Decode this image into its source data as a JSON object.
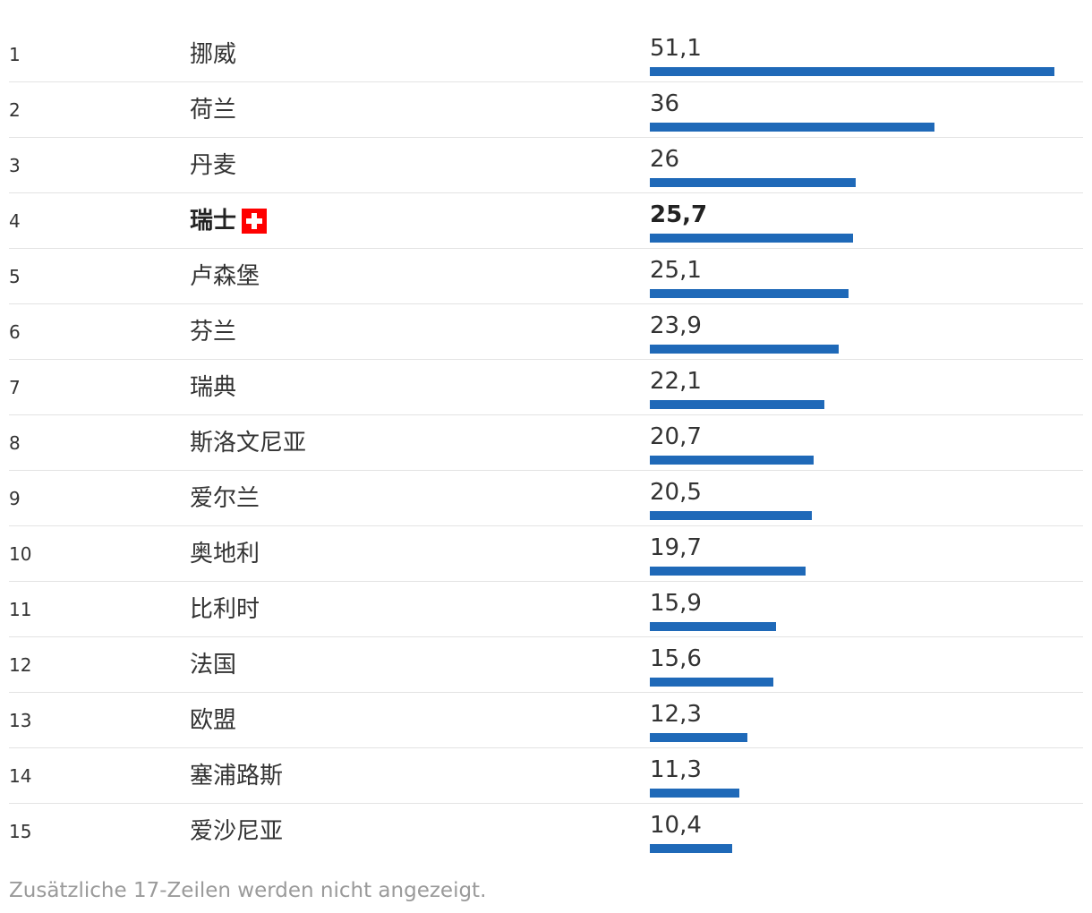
{
  "chart_data": {
    "type": "bar",
    "orientation": "horizontal",
    "max_value": 51.1,
    "rows": [
      {
        "rank": "1",
        "country": "挪威",
        "value": 51.1,
        "label": "51,1",
        "highlight": false
      },
      {
        "rank": "2",
        "country": "荷兰",
        "value": 36,
        "label": "36",
        "highlight": false
      },
      {
        "rank": "3",
        "country": "丹麦",
        "value": 26,
        "label": "26",
        "highlight": false
      },
      {
        "rank": "4",
        "country": "瑞士",
        "value": 25.7,
        "label": "25,7",
        "highlight": true,
        "flag": "swiss-flag-icon"
      },
      {
        "rank": "5",
        "country": "卢森堡",
        "value": 25.1,
        "label": "25,1",
        "highlight": false
      },
      {
        "rank": "6",
        "country": "芬兰",
        "value": 23.9,
        "label": "23,9",
        "highlight": false
      },
      {
        "rank": "7",
        "country": "瑞典",
        "value": 22.1,
        "label": "22,1",
        "highlight": false
      },
      {
        "rank": "8",
        "country": "斯洛文尼亚",
        "value": 20.7,
        "label": "20,7",
        "highlight": false
      },
      {
        "rank": "9",
        "country": "爱尔兰",
        "value": 20.5,
        "label": "20,5",
        "highlight": false
      },
      {
        "rank": "10",
        "country": "奥地利",
        "value": 19.7,
        "label": "19,7",
        "highlight": false
      },
      {
        "rank": "11",
        "country": "比利时",
        "value": 15.9,
        "label": "15,9",
        "highlight": false
      },
      {
        "rank": "12",
        "country": "法国",
        "value": 15.6,
        "label": "15,6",
        "highlight": false
      },
      {
        "rank": "13",
        "country": "欧盟",
        "value": 12.3,
        "label": "12,3",
        "highlight": false
      },
      {
        "rank": "14",
        "country": "塞浦路斯",
        "value": 11.3,
        "label": "11,3",
        "highlight": false
      },
      {
        "rank": "15",
        "country": "爱沙尼亚",
        "value": 10.4,
        "label": "10,4",
        "highlight": false
      }
    ],
    "colors": {
      "bar": "#1f69b8",
      "flag": "#ff0000"
    }
  },
  "footnote": "Zusätzliche 17-Zeilen werden nicht angezeigt."
}
